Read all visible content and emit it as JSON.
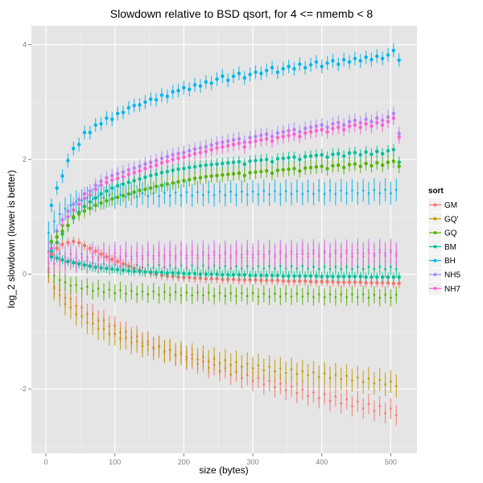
{
  "chart_data": {
    "type": "scatter",
    "title": "Slowdown relative to BSD qsort, for 4 <= nmemb < 8",
    "xlabel": "size (bytes)",
    "ylabel": "log_2 slowdown (lower is better)",
    "xlim": [
      -21,
      538
    ],
    "ylim": [
      -3.12,
      4.33
    ],
    "x_ticks": [
      0,
      100,
      200,
      300,
      400,
      500
    ],
    "x_tick_labels": [
      "0",
      "100",
      "200",
      "300",
      "400",
      "500"
    ],
    "y_ticks": [
      -2,
      0,
      2,
      4
    ],
    "y_tick_labels": [
      "-2",
      "0",
      "2",
      "4"
    ],
    "grid": true,
    "error_bars": true,
    "legend": {
      "title": "sort",
      "position": "right",
      "entries": [
        "GM",
        "GQ'",
        "GQ",
        "BM",
        "BH",
        "NH5",
        "NH7"
      ]
    },
    "colors": {
      "GM": "#f8766d",
      "GQ'": "#c49a00",
      "GQ": "#53b400",
      "BM": "#00c094",
      "BH": "#00b6eb",
      "NH5": "#a58aff",
      "NH7": "#fb61d7"
    },
    "series": [
      {
        "name": "GM",
        "group": "dense",
        "x_start": 4,
        "x_step": 8,
        "y": [
          0.02,
          -0.22,
          -0.28,
          -0.41,
          -0.43,
          -0.55,
          -0.58,
          -0.69,
          -0.7,
          -0.81,
          -0.8,
          -0.91,
          -0.9,
          -1.01,
          -1.0,
          -1.1,
          -1.08,
          -1.19,
          -1.17,
          -1.27,
          -1.25,
          -1.35,
          -1.33,
          -1.42,
          -1.4,
          -1.49,
          -1.47,
          -1.56,
          -1.52,
          -1.63,
          -1.58,
          -1.69,
          -1.64,
          -1.75,
          -1.7,
          -1.81,
          -1.76,
          -1.86,
          -1.81,
          -1.92,
          -1.86,
          -1.97,
          -1.91,
          -2.02,
          -1.96,
          -2.07,
          -2.01,
          -2.12,
          -2.06,
          -2.16,
          -2.09,
          -2.21,
          -2.13,
          -2.25,
          -2.18,
          -2.3,
          -2.22,
          -2.34,
          -2.26,
          -2.38,
          -2.3,
          -2.42,
          -2.34,
          -2.46
        ],
        "err": 0.18
      },
      {
        "name": "GQ'",
        "group": "dense",
        "x_start": 4,
        "x_step": 8,
        "y": [
          0.05,
          -0.25,
          -0.36,
          -0.52,
          -0.58,
          -0.7,
          -0.73,
          -0.84,
          -0.86,
          -0.95,
          -0.96,
          -1.04,
          -1.04,
          -1.12,
          -1.11,
          -1.19,
          -1.17,
          -1.25,
          -1.22,
          -1.3,
          -1.27,
          -1.35,
          -1.32,
          -1.4,
          -1.36,
          -1.44,
          -1.4,
          -1.48,
          -1.44,
          -1.52,
          -1.47,
          -1.55,
          -1.5,
          -1.58,
          -1.53,
          -1.61,
          -1.56,
          -1.64,
          -1.59,
          -1.67,
          -1.61,
          -1.69,
          -1.64,
          -1.72,
          -1.66,
          -1.74,
          -1.69,
          -1.76,
          -1.71,
          -1.79,
          -1.73,
          -1.81,
          -1.75,
          -1.83,
          -1.77,
          -1.85,
          -1.8,
          -1.88,
          -1.82,
          -1.9,
          -1.84,
          -1.92,
          -1.87,
          -1.95
        ],
        "err": 0.2
      },
      {
        "name": "GQ",
        "group": "dense",
        "x_start": 4,
        "x_step": 8,
        "y": [
          0.1,
          -0.02,
          -0.1,
          -0.14,
          -0.2,
          -0.19,
          -0.25,
          -0.22,
          -0.29,
          -0.25,
          -0.31,
          -0.27,
          -0.33,
          -0.28,
          -0.34,
          -0.29,
          -0.35,
          -0.3,
          -0.35,
          -0.3,
          -0.36,
          -0.31,
          -0.36,
          -0.31,
          -0.37,
          -0.32,
          -0.37,
          -0.32,
          -0.37,
          -0.32,
          -0.38,
          -0.33,
          -0.38,
          -0.33,
          -0.38,
          -0.33,
          -0.38,
          -0.33,
          -0.39,
          -0.34,
          -0.39,
          -0.34,
          -0.39,
          -0.34,
          -0.39,
          -0.34,
          -0.39,
          -0.34,
          -0.4,
          -0.35,
          -0.4,
          -0.35,
          -0.4,
          -0.35,
          -0.4,
          -0.35,
          -0.4,
          -0.35,
          -0.41,
          -0.36,
          -0.41,
          -0.36,
          -0.41,
          -0.36
        ],
        "err": 0.15
      },
      {
        "name": "BM",
        "group": "dense",
        "x_start": 4,
        "x_step": 8,
        "y": [
          0.4,
          0.32,
          0.28,
          0.22,
          0.24,
          0.19,
          0.21,
          0.16,
          0.19,
          0.15,
          0.18,
          0.14,
          0.17,
          0.13,
          0.17,
          0.13,
          0.16,
          0.12,
          0.16,
          0.12,
          0.16,
          0.12,
          0.15,
          0.11,
          0.15,
          0.11,
          0.15,
          0.11,
          0.15,
          0.11,
          0.15,
          0.11,
          0.14,
          0.1,
          0.14,
          0.1,
          0.14,
          0.1,
          0.14,
          0.1,
          0.14,
          0.1,
          0.14,
          0.1,
          0.14,
          0.1,
          0.14,
          0.1,
          0.13,
          0.09,
          0.13,
          0.09,
          0.13,
          0.09,
          0.13,
          0.09,
          0.13,
          0.09,
          0.13,
          0.09,
          0.13,
          0.09,
          0.13,
          0.09
        ],
        "err": 0.15
      },
      {
        "name": "BH",
        "group": "dense",
        "x_start": 4,
        "x_step": 8,
        "y": [
          0.72,
          0.92,
          1.05,
          1.14,
          1.2,
          1.26,
          1.28,
          1.33,
          1.31,
          1.36,
          1.33,
          1.38,
          1.34,
          1.39,
          1.35,
          1.4,
          1.35,
          1.41,
          1.36,
          1.41,
          1.36,
          1.42,
          1.37,
          1.42,
          1.37,
          1.43,
          1.37,
          1.43,
          1.38,
          1.43,
          1.38,
          1.44,
          1.38,
          1.44,
          1.38,
          1.44,
          1.39,
          1.44,
          1.39,
          1.45,
          1.39,
          1.45,
          1.39,
          1.45,
          1.4,
          1.45,
          1.4,
          1.45,
          1.4,
          1.46,
          1.4,
          1.46,
          1.4,
          1.46,
          1.41,
          1.46,
          1.41,
          1.46,
          1.41,
          1.47,
          1.41,
          1.47,
          1.41,
          1.47
        ],
        "err": 0.2
      },
      {
        "name": "NH5",
        "group": "dense",
        "x_start": 4,
        "x_step": 8,
        "y": [
          0.38,
          0.33,
          0.36,
          0.3,
          0.35,
          0.29,
          0.35,
          0.3,
          0.36,
          0.3,
          0.36,
          0.31,
          0.37,
          0.31,
          0.37,
          0.31,
          0.37,
          0.32,
          0.38,
          0.32,
          0.38,
          0.32,
          0.38,
          0.32,
          0.38,
          0.33,
          0.39,
          0.33,
          0.39,
          0.33,
          0.39,
          0.33,
          0.39,
          0.33,
          0.39,
          0.34,
          0.4,
          0.34,
          0.4,
          0.34,
          0.4,
          0.34,
          0.4,
          0.34,
          0.4,
          0.35,
          0.41,
          0.35,
          0.41,
          0.35,
          0.41,
          0.35,
          0.41,
          0.35,
          0.41,
          0.36,
          0.42,
          0.36,
          0.42,
          0.36,
          0.42,
          0.36,
          0.42,
          0.36
        ],
        "err": 0.2
      },
      {
        "name": "NH7",
        "group": "dense",
        "x_start": 4,
        "x_step": 8,
        "y": [
          0.2,
          0.18,
          0.24,
          0.2,
          0.27,
          0.22,
          0.29,
          0.24,
          0.3,
          0.25,
          0.31,
          0.25,
          0.31,
          0.26,
          0.32,
          0.26,
          0.32,
          0.27,
          0.33,
          0.27,
          0.33,
          0.27,
          0.33,
          0.28,
          0.34,
          0.28,
          0.34,
          0.28,
          0.34,
          0.28,
          0.34,
          0.29,
          0.35,
          0.29,
          0.35,
          0.29,
          0.35,
          0.29,
          0.35,
          0.3,
          0.36,
          0.3,
          0.36,
          0.3,
          0.36,
          0.3,
          0.36,
          0.3,
          0.36,
          0.31,
          0.37,
          0.31,
          0.37,
          0.31,
          0.37,
          0.31,
          0.37,
          0.31,
          0.37,
          0.32,
          0.38,
          0.32,
          0.38,
          0.32
        ],
        "err": 0.2
      },
      {
        "name": "BH",
        "group": "sparse",
        "x_start": 8,
        "x_step": 8,
        "y": [
          1.2,
          1.5,
          1.71,
          1.98,
          2.19,
          2.26,
          2.47,
          2.47,
          2.6,
          2.62,
          2.72,
          2.7,
          2.8,
          2.82,
          2.9,
          2.94,
          2.95,
          3.0,
          3.05,
          3.04,
          3.12,
          3.1,
          3.18,
          3.2,
          3.25,
          3.22,
          3.3,
          3.28,
          3.35,
          3.33,
          3.4,
          3.45,
          3.38,
          3.45,
          3.5,
          3.42,
          3.48,
          3.52,
          3.5,
          3.55,
          3.6,
          3.52,
          3.58,
          3.62,
          3.58,
          3.66,
          3.6,
          3.65,
          3.7,
          3.62,
          3.68,
          3.72,
          3.66,
          3.74,
          3.7,
          3.76,
          3.72,
          3.78,
          3.74,
          3.8,
          3.76,
          3.82,
          3.9,
          3.73
        ],
        "err": 0.12
      },
      {
        "name": "NH5",
        "group": "sparse",
        "x_start": 8,
        "x_step": 8,
        "y": [
          0.55,
          0.75,
          0.95,
          1.1,
          1.22,
          1.3,
          1.4,
          1.45,
          1.55,
          1.62,
          1.68,
          1.72,
          1.75,
          1.78,
          1.82,
          1.85,
          1.88,
          1.92,
          1.95,
          1.98,
          2.02,
          2.05,
          2.08,
          2.1,
          2.12,
          2.15,
          2.18,
          2.2,
          2.22,
          2.25,
          2.28,
          2.3,
          2.32,
          2.34,
          2.36,
          2.3,
          2.38,
          2.4,
          2.42,
          2.44,
          2.4,
          2.46,
          2.48,
          2.5,
          2.52,
          2.48,
          2.54,
          2.56,
          2.58,
          2.6,
          2.56,
          2.62,
          2.64,
          2.6,
          2.66,
          2.68,
          2.64,
          2.7,
          2.66,
          2.72,
          2.68,
          2.74,
          2.8,
          2.45
        ],
        "err": 0.12
      },
      {
        "name": "NH7",
        "group": "sparse",
        "x_start": 8,
        "x_step": 8,
        "y": [
          0.45,
          0.65,
          0.85,
          1.0,
          1.12,
          1.22,
          1.32,
          1.38,
          1.48,
          1.55,
          1.6,
          1.64,
          1.67,
          1.7,
          1.74,
          1.77,
          1.8,
          1.84,
          1.87,
          1.9,
          1.94,
          1.97,
          2.0,
          2.02,
          2.04,
          2.07,
          2.1,
          2.12,
          2.14,
          2.17,
          2.2,
          2.22,
          2.24,
          2.26,
          2.28,
          2.22,
          2.3,
          2.32,
          2.34,
          2.36,
          2.32,
          2.38,
          2.4,
          2.42,
          2.44,
          2.4,
          2.46,
          2.48,
          2.5,
          2.52,
          2.48,
          2.54,
          2.56,
          2.52,
          2.58,
          2.6,
          2.56,
          2.62,
          2.58,
          2.64,
          2.6,
          2.66,
          2.72,
          2.39
        ],
        "err": 0.12
      },
      {
        "name": "BM",
        "group": "sparse",
        "x_start": 8,
        "x_step": 8,
        "y": [
          0.4,
          0.55,
          0.7,
          0.85,
          0.98,
          1.08,
          1.18,
          1.26,
          1.33,
          1.4,
          1.45,
          1.5,
          1.54,
          1.57,
          1.6,
          1.63,
          1.66,
          1.69,
          1.72,
          1.74,
          1.77,
          1.79,
          1.81,
          1.83,
          1.84,
          1.86,
          1.87,
          1.89,
          1.9,
          1.91,
          1.92,
          1.93,
          1.94,
          1.95,
          1.96,
          1.92,
          1.97,
          1.98,
          1.99,
          2.0,
          1.96,
          2.01,
          2.02,
          2.03,
          2.04,
          2.0,
          2.05,
          2.06,
          2.07,
          2.08,
          2.04,
          2.09,
          2.1,
          2.06,
          2.11,
          2.12,
          2.08,
          2.13,
          2.09,
          2.14,
          2.1,
          2.15,
          2.17,
          1.95
        ],
        "err": 0.1
      },
      {
        "name": "GQ",
        "group": "sparse",
        "x_start": 8,
        "x_step": 8,
        "y": [
          0.57,
          0.65,
          0.75,
          0.85,
          1.0,
          1.05,
          1.1,
          1.15,
          1.2,
          1.24,
          1.28,
          1.31,
          1.34,
          1.37,
          1.4,
          1.43,
          1.46,
          1.48,
          1.5,
          1.53,
          1.55,
          1.57,
          1.59,
          1.61,
          1.63,
          1.65,
          1.67,
          1.68,
          1.7,
          1.71,
          1.72,
          1.73,
          1.74,
          1.75,
          1.76,
          1.72,
          1.77,
          1.78,
          1.79,
          1.8,
          1.76,
          1.81,
          1.82,
          1.83,
          1.84,
          1.8,
          1.85,
          1.86,
          1.87,
          1.88,
          1.84,
          1.89,
          1.9,
          1.86,
          1.91,
          1.92,
          1.88,
          1.93,
          1.89,
          1.94,
          1.9,
          1.95,
          1.97,
          1.88
        ],
        "err": 0.12
      },
      {
        "name": "GM",
        "group": "sparse",
        "x_start": 8,
        "x_step": 8,
        "y": [
          0.35,
          0.45,
          0.52,
          0.55,
          0.57,
          0.55,
          0.5,
          0.45,
          0.4,
          0.35,
          0.3,
          0.26,
          0.22,
          0.18,
          0.14,
          0.1,
          0.07,
          0.04,
          0.02,
          0.0,
          -0.02,
          -0.03,
          -0.04,
          -0.05,
          -0.06,
          -0.06,
          -0.07,
          -0.07,
          -0.08,
          -0.08,
          -0.08,
          -0.09,
          -0.09,
          -0.09,
          -0.1,
          -0.1,
          -0.1,
          -0.1,
          -0.11,
          -0.11,
          -0.11,
          -0.11,
          -0.12,
          -0.12,
          -0.12,
          -0.12,
          -0.12,
          -0.13,
          -0.13,
          -0.13,
          -0.13,
          -0.13,
          -0.14,
          -0.14,
          -0.14,
          -0.14,
          -0.14,
          -0.15,
          -0.15,
          -0.15,
          -0.15,
          -0.15,
          -0.16,
          -0.16
        ],
        "err": 0.08
      },
      {
        "name": "BM",
        "group": "sparse-low",
        "x_start": 8,
        "x_step": 8,
        "y": [
          0.3,
          0.28,
          0.25,
          0.22,
          0.2,
          0.18,
          0.16,
          0.14,
          0.12,
          0.11,
          0.1,
          0.09,
          0.08,
          0.07,
          0.06,
          0.05,
          0.05,
          0.04,
          0.04,
          0.03,
          0.03,
          0.02,
          0.02,
          0.02,
          0.01,
          0.01,
          0.01,
          0.0,
          0.0,
          0.0,
          0.0,
          -0.01,
          -0.01,
          -0.01,
          -0.01,
          -0.01,
          -0.02,
          -0.02,
          -0.02,
          -0.02,
          -0.02,
          -0.02,
          -0.03,
          -0.03,
          -0.03,
          -0.03,
          -0.03,
          -0.03,
          -0.03,
          -0.04,
          -0.04,
          -0.04,
          -0.04,
          -0.04,
          -0.04,
          -0.04,
          -0.04,
          -0.05,
          -0.05,
          -0.05,
          -0.05,
          -0.05,
          -0.05,
          -0.05
        ],
        "err": 0.08
      }
    ]
  }
}
